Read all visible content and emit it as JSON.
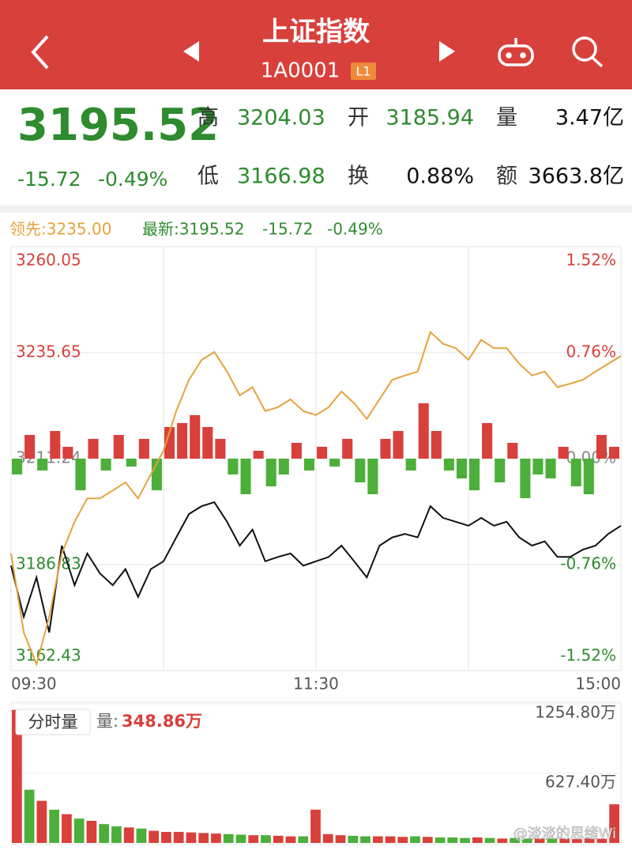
{
  "header": {
    "title": "上证指数",
    "code": "1A0001",
    "badge": "L1"
  },
  "quote": {
    "price": "3195.52",
    "change": "-15.72",
    "change_pct": "-0.49%",
    "fields": [
      {
        "label": "高",
        "value": "3204.03"
      },
      {
        "label": "开",
        "value": "3185.94"
      },
      {
        "label": "量",
        "value": "3.47亿"
      },
      {
        "label": "低",
        "value": "3166.98"
      },
      {
        "label": "换",
        "value": "0.88%"
      },
      {
        "label": "额",
        "value": "3663.8亿"
      }
    ]
  },
  "legend": {
    "lead": "领先:3235.00",
    "latest": "最新:3195.52",
    "latest_change": "-15.72",
    "latest_pct": "-0.49%"
  },
  "chart": {
    "type": "line",
    "ylim": [
      3162.43,
      3260.05
    ],
    "yticks": [
      3260.05,
      3235.65,
      3211.24,
      3186.83,
      3162.43
    ],
    "y2lim": [
      -1.52,
      1.52
    ],
    "y2ticks": [
      {
        "value": 1.52,
        "label": "1.52%"
      },
      {
        "value": 0.76,
        "label": "0.76%"
      },
      {
        "value": 0,
        "label": "0.00%"
      },
      {
        "value": -0.76,
        "label": "-0.76%"
      },
      {
        "value": -1.52,
        "label": "-1.52%"
      }
    ],
    "xticks": [
      "09:30",
      "11:30",
      "15:00"
    ],
    "series": [
      {
        "name": "最新",
        "color": "#111111",
        "values": [
          3186.6,
          3174.8,
          3183.9,
          3171.2,
          3191.2,
          3182.1,
          3189.4,
          3184.8,
          3182.1,
          3185.8,
          3179.4,
          3185.8,
          3187.6,
          3193.1,
          3198.5,
          3200.3,
          3201.2,
          3196.7,
          3191.2,
          3194.9,
          3187.6,
          3188.6,
          3189.4,
          3186.6,
          3187.6,
          3188.6,
          3191.2,
          3187.6,
          3183.9,
          3191.2,
          3193.1,
          3193.9,
          3193.1,
          3200.3,
          3197.6,
          3196.7,
          3195.8,
          3197.6,
          3195.8,
          3196.7,
          3193.1,
          3191.2,
          3192.2,
          3188.6,
          3188.6,
          3190.3,
          3191.2,
          3193.9,
          3195.8
        ]
      },
      {
        "name": "领先",
        "color": "#e3a33c",
        "values": [
          3189.4,
          3171.2,
          3163.9,
          3174.8,
          3189.4,
          3196.7,
          3202.1,
          3202.1,
          3203.9,
          3205.8,
          3202.1,
          3207.6,
          3213.1,
          3222.2,
          3229.4,
          3234.0,
          3235.8,
          3231.3,
          3225.8,
          3227.7,
          3222.2,
          3223.1,
          3224.9,
          3222.2,
          3221.3,
          3223.1,
          3226.7,
          3224.0,
          3220.4,
          3224.9,
          3229.4,
          3230.4,
          3231.3,
          3240.4,
          3237.7,
          3236.7,
          3234.0,
          3238.6,
          3236.7,
          3236.7,
          3233.1,
          3230.4,
          3231.3,
          3227.7,
          3228.5,
          3229.4,
          3231.3,
          3233.1,
          3234.9
        ]
      }
    ],
    "momentum": [
      -20,
      30,
      -15,
      35,
      15,
      -40,
      25,
      -15,
      30,
      -10,
      25,
      -40,
      40,
      45,
      55,
      40,
      25,
      -20,
      -45,
      10,
      -35,
      -20,
      20,
      -15,
      15,
      -10,
      25,
      -30,
      -45,
      25,
      35,
      -15,
      70,
      35,
      -15,
      -25,
      -40,
      45,
      -30,
      20,
      -50,
      -20,
      -25,
      15,
      -35,
      -45,
      30,
      15
    ]
  },
  "volume": {
    "type": "bar",
    "title": "分时量",
    "label": "量:",
    "current": "348.86万",
    "ylim": [
      0,
      1254.8
    ],
    "yticks": [
      {
        "value": 1254.8,
        "label": "1254.80万"
      },
      {
        "value": 627.4,
        "label": "627.40万"
      }
    ],
    "values": [
      1200,
      480,
      380,
      300,
      260,
      220,
      200,
      170,
      150,
      140,
      130,
      110,
      100,
      100,
      95,
      90,
      85,
      80,
      75,
      70,
      70,
      65,
      60,
      60,
      300,
      80,
      70,
      65,
      60,
      60,
      60,
      55,
      60,
      55,
      50,
      50,
      45,
      50,
      45,
      40,
      45,
      40,
      40,
      40,
      40,
      35,
      40,
      38,
      348.86
    ]
  },
  "watermark": "@淡淡的思绪Wi"
}
